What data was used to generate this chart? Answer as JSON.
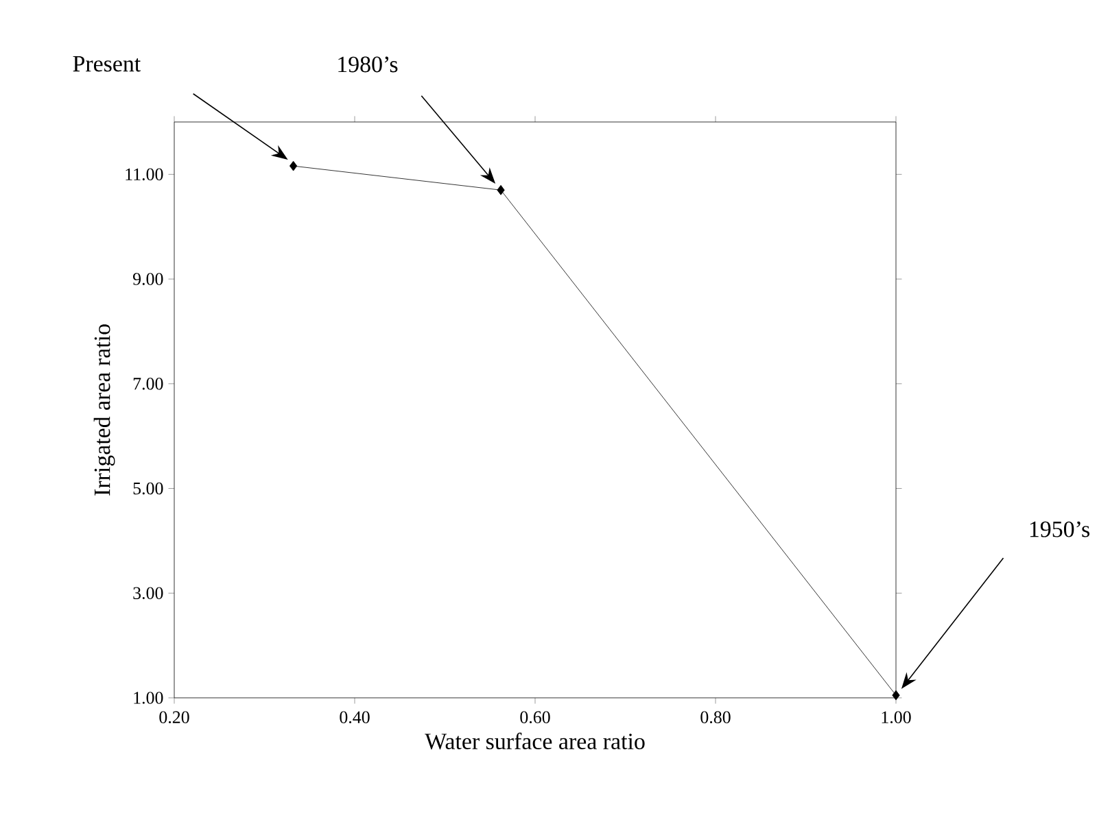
{
  "chart_data": {
    "type": "line",
    "xlabel": "Water surface area ratio",
    "ylabel": "Irrigated area ratio",
    "x": [
      0.332,
      0.562,
      1.0
    ],
    "series": [
      {
        "color": "#000000",
        "values": [
          11.16,
          10.7,
          1.05
        ]
      }
    ],
    "marker": "diamond",
    "line_style": "solid",
    "xlim": [
      0.2,
      1.0
    ],
    "ylim": [
      1.0,
      12.0
    ],
    "xticks": [
      {
        "value": 0.2,
        "label": "0.20"
      },
      {
        "value": 0.4,
        "label": "0.40"
      },
      {
        "value": 0.6,
        "label": "0.60"
      },
      {
        "value": 0.8,
        "label": "0.80"
      },
      {
        "value": 1.0,
        "label": "1.00"
      }
    ],
    "yticks": [
      {
        "value": 1,
        "label": "1.00"
      },
      {
        "value": 3,
        "label": "3.00"
      },
      {
        "value": 5,
        "label": "5.00"
      },
      {
        "value": 7,
        "label": "7.00"
      },
      {
        "value": 9,
        "label": "9.00"
      },
      {
        "value": 11,
        "label": "11.00"
      }
    ],
    "annotations": [
      "Present",
      "1980’s",
      "1950’s"
    ]
  }
}
